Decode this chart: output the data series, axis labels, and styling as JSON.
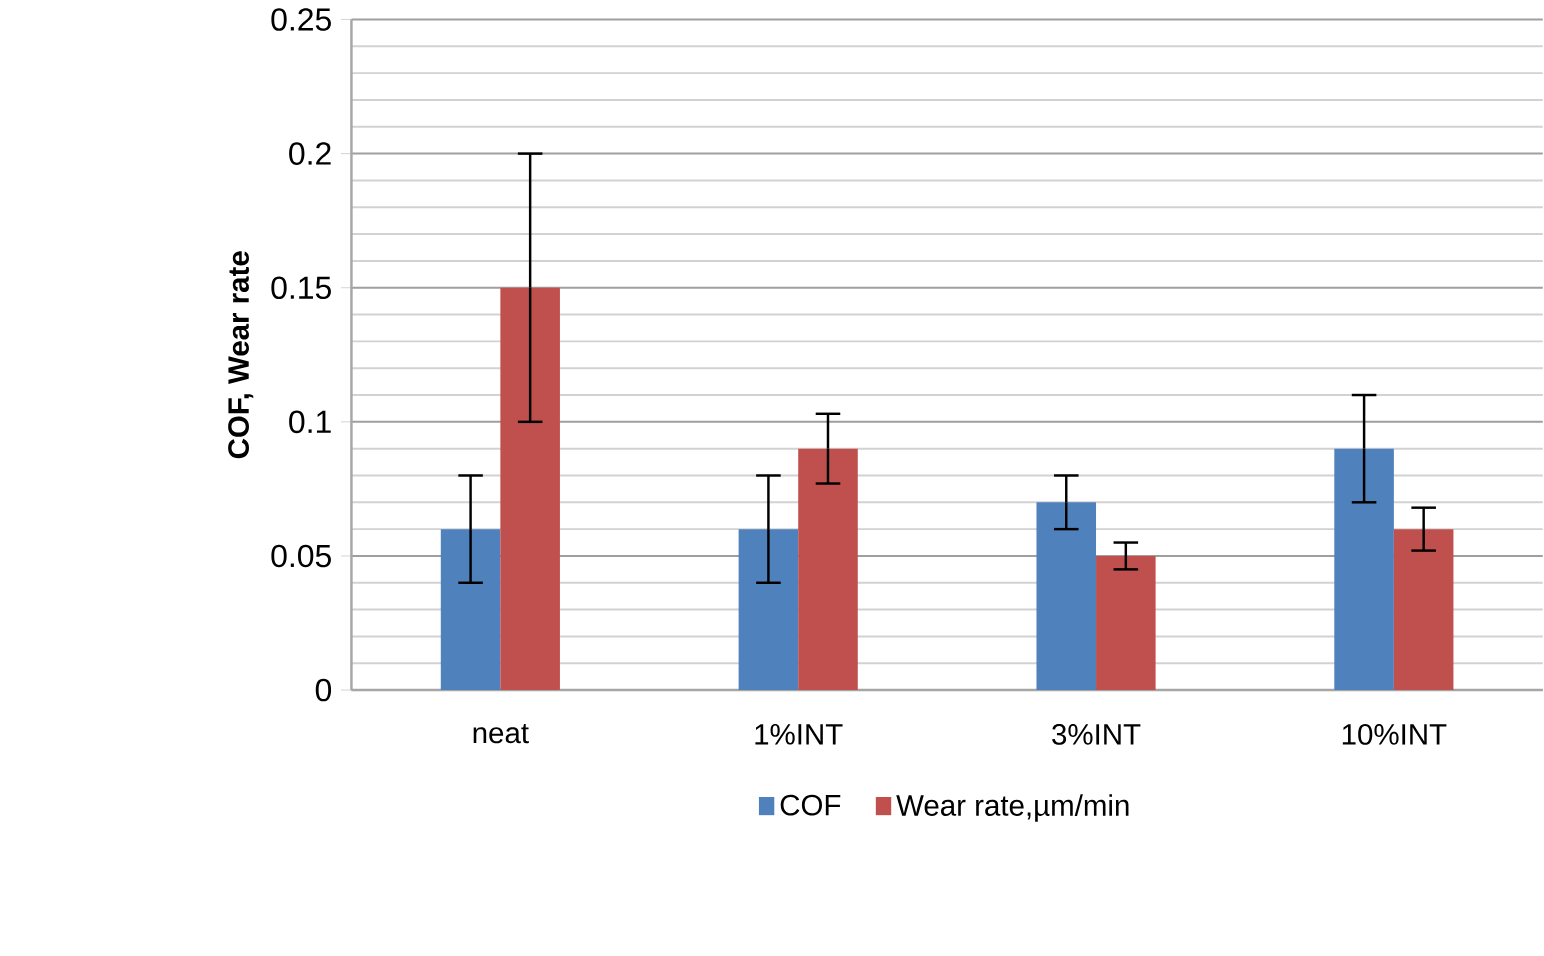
{
  "chart_data": {
    "type": "bar",
    "ylabel": "COF, Wear rate",
    "categories": [
      "neat",
      "1%INT",
      "3%INT",
      "10%INT"
    ],
    "series": [
      {
        "name": "COF",
        "color": "#4f81bd",
        "values": [
          0.06,
          0.06,
          0.07,
          0.09
        ],
        "errors": [
          0.02,
          0.02,
          0.01,
          0.02
        ]
      },
      {
        "name": "Wear rate,µm/min",
        "color": "#c0504d",
        "values": [
          0.15,
          0.09,
          0.05,
          0.06
        ],
        "errors": [
          0.05,
          0.013,
          0.005,
          0.008
        ]
      }
    ],
    "ylim": [
      0,
      0.25
    ],
    "yticks": [
      0,
      0.05,
      0.1,
      0.15,
      0.2,
      0.25
    ],
    "grid": "y",
    "legend": "bottom"
  }
}
